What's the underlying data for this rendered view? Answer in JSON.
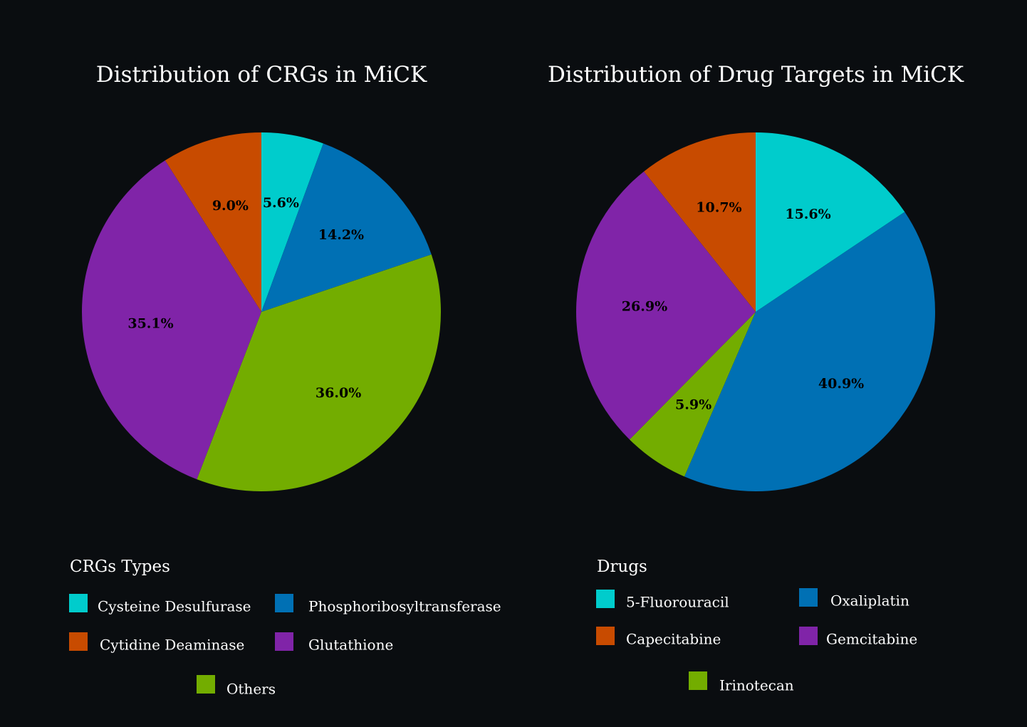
{
  "chart_data": [
    {
      "type": "pie",
      "title": "Distribution of CRGs in MiCK",
      "legend_title": "CRGs Types",
      "legend_placement": "bottom",
      "categories": [
        "Cysteine Desulfurase",
        "Phosphoribosyltransferase",
        "Others",
        "Glutathione",
        "Cytidine Deaminase"
      ],
      "values": [
        5.6,
        14.2,
        36.0,
        35.1,
        9.0
      ],
      "labels": [
        "5.6%",
        "14.2%",
        "36.0%",
        "35.1%",
        "9.0%"
      ],
      "colors": [
        "#00cccc",
        "#0070b4",
        "#73ad00",
        "#8024a8",
        "#c84b00"
      ],
      "legend_order": [
        "Cysteine Desulfurase",
        "Phosphoribosyltransferase",
        "Cytidine Deaminase",
        "Glutathione",
        "Others"
      ]
    },
    {
      "type": "pie",
      "title": "Distribution of Drug Targets in MiCK",
      "legend_title": "Drugs",
      "legend_placement": "bottom",
      "categories": [
        "5-Fluorouracil",
        "Oxaliplatin",
        "Irinotecan",
        "Gemcitabine",
        "Capecitabine"
      ],
      "values": [
        15.6,
        40.9,
        5.9,
        26.9,
        10.7
      ],
      "labels": [
        "15.6%",
        "40.9%",
        "5.9%",
        "26.9%",
        "10.7%"
      ],
      "colors": [
        "#00cccc",
        "#0070b4",
        "#73ad00",
        "#8024a8",
        "#c84b00"
      ],
      "legend_order": [
        "5-Fluorouracil",
        "Oxaliplatin",
        "Capecitabine",
        "Gemcitabine",
        "Irinotecan"
      ]
    }
  ]
}
